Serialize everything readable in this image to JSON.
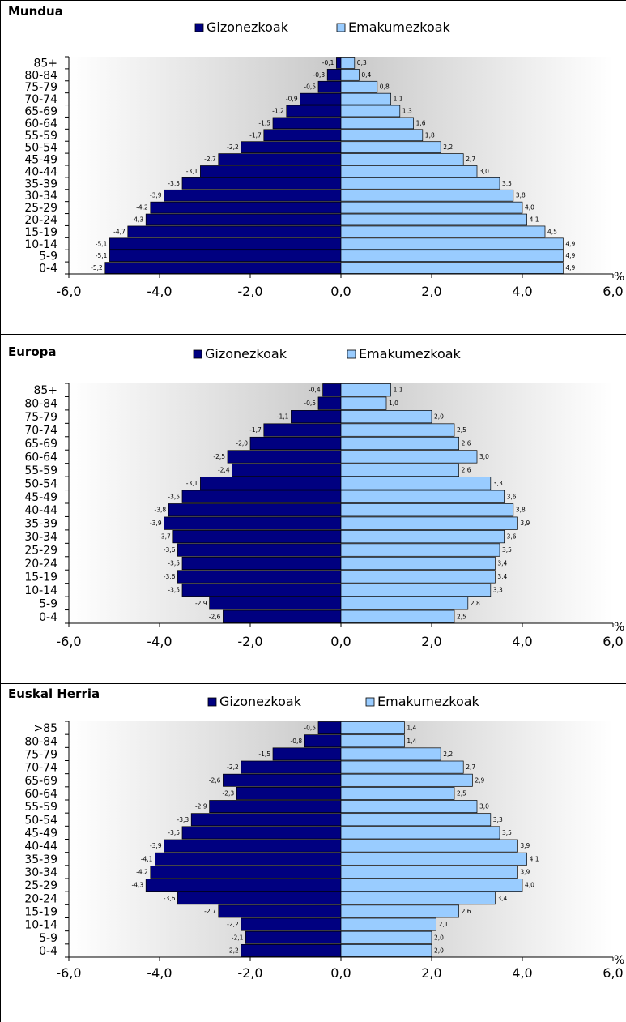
{
  "chart_data": [
    {
      "type": "bar",
      "title": "Mundua",
      "categories": [
        "85+",
        "80-84",
        "75-79",
        "70-74",
        "65-69",
        "60-64",
        "55-59",
        "50-54",
        "45-49",
        "40-44",
        "35-39",
        "30-34",
        "25-29",
        "20-24",
        "15-19",
        "10-14",
        "5-9",
        "0-4"
      ],
      "series": [
        {
          "name": "Gizonezkoak",
          "color": "#000080",
          "values": [
            -0.1,
            -0.3,
            -0.5,
            -0.9,
            -1.2,
            -1.5,
            -1.7,
            -2.2,
            -2.7,
            -3.1,
            -3.5,
            -3.9,
            -4.2,
            -4.3,
            -4.7,
            -5.1,
            -5.1,
            -5.2
          ],
          "labels": [
            "-0,1",
            "-0,3",
            "-0,5",
            "-0,9",
            "-1,2",
            "-1,5",
            "-1,7",
            "-2,2",
            "-2,7",
            "-3,1",
            "-3,5",
            "-3,9",
            "-4,2",
            "-4,3",
            "-4,7",
            "-5,1",
            "-5,1",
            "-5,2"
          ]
        },
        {
          "name": "Emakumezkoak",
          "color": "#99ccff",
          "values": [
            0.3,
            0.4,
            0.8,
            1.1,
            1.3,
            1.6,
            1.8,
            2.2,
            2.7,
            3.0,
            3.5,
            3.8,
            4.0,
            4.1,
            4.5,
            4.9,
            4.9,
            4.9
          ],
          "labels": [
            "0,3",
            "0,4",
            "0,8",
            "1,1",
            "1,3",
            "1,6",
            "1,8",
            "2,2",
            "2,7",
            "3,0",
            "3,5",
            "3,8",
            "4,0",
            "4,1",
            "4,5",
            "4,9",
            "4,9",
            "4,9"
          ]
        }
      ],
      "xlim": [
        -6,
        6
      ],
      "xticks": [
        "-6,0",
        "-4,0",
        "-2,0",
        "0,0",
        "2,0",
        "4,0",
        "6,0"
      ],
      "xunit": "%",
      "legend": "top-center"
    },
    {
      "type": "bar",
      "title": "Europa",
      "categories": [
        "85+",
        "80-84",
        "75-79",
        "70-74",
        "65-69",
        "60-64",
        "55-59",
        "50-54",
        "45-49",
        "40-44",
        "35-39",
        "30-34",
        "25-29",
        "20-24",
        "15-19",
        "10-14",
        "5-9",
        "0-4"
      ],
      "series": [
        {
          "name": "Gizonezkoak",
          "color": "#000080",
          "values": [
            -0.4,
            -0.5,
            -1.1,
            -1.7,
            -2.0,
            -2.5,
            -2.4,
            -3.1,
            -3.5,
            -3.8,
            -3.9,
            -3.7,
            -3.6,
            -3.5,
            -3.6,
            -3.5,
            -2.9,
            -2.6
          ],
          "labels": [
            "-0,4",
            "-0,5",
            "-1,1",
            "-1,7",
            "-2,0",
            "-2,5",
            "-2,4",
            "-3,1",
            "-3,5",
            "-3,8",
            "-3,9",
            "-3,7",
            "-3,6",
            "-3,5",
            "-3,6",
            "-3,5",
            "-2,9",
            "-2,6"
          ]
        },
        {
          "name": "Emakumezkoak",
          "color": "#99ccff",
          "values": [
            1.1,
            1.0,
            2.0,
            2.5,
            2.6,
            3.0,
            2.6,
            3.3,
            3.6,
            3.8,
            3.9,
            3.6,
            3.5,
            3.4,
            3.4,
            3.3,
            2.8,
            2.5
          ],
          "labels": [
            "1,1",
            "1,0",
            "2,0",
            "2,5",
            "2,6",
            "3,0",
            "2,6",
            "3,3",
            "3,6",
            "3,8",
            "3,9",
            "3,6",
            "3,5",
            "3,4",
            "3,4",
            "3,3",
            "2,8",
            "2,5"
          ]
        }
      ],
      "xlim": [
        -6,
        6
      ],
      "xticks": [
        "-6,0",
        "-4,0",
        "-2,0",
        "0,0",
        "2,0",
        "4,0",
        "6,0"
      ],
      "xunit": "%",
      "legend": "top-center"
    },
    {
      "type": "bar",
      "title": "Euskal Herria",
      "categories": [
        ">85",
        "80-84",
        "75-79",
        "70-74",
        "65-69",
        "60-64",
        "55-59",
        "50-54",
        "45-49",
        "40-44",
        "35-39",
        "30-34",
        "25-29",
        "20-24",
        "15-19",
        "10-14",
        "5-9",
        "0-4"
      ],
      "series": [
        {
          "name": "Gizonezkoak",
          "color": "#000080",
          "values": [
            -0.5,
            -0.8,
            -1.5,
            -2.2,
            -2.6,
            -2.3,
            -2.9,
            -3.3,
            -3.5,
            -3.9,
            -4.1,
            -4.2,
            -4.3,
            -3.6,
            -2.7,
            -2.2,
            -2.1,
            -2.2
          ],
          "labels": [
            "-0,5",
            "-0,8",
            "-1,5",
            "-2,2",
            "-2,6",
            "-2,3",
            "-2,9",
            "-3,3",
            "-3,5",
            "-3,9",
            "-4,1",
            "-4,2",
            "-4,3",
            "-3,6",
            "-2,7",
            "-2,2",
            "-2,1",
            "-2,2"
          ]
        },
        {
          "name": "Emakumezkoak",
          "color": "#99ccff",
          "values": [
            1.4,
            1.4,
            2.2,
            2.7,
            2.9,
            2.5,
            3.0,
            3.3,
            3.5,
            3.9,
            4.1,
            3.9,
            4.0,
            3.4,
            2.6,
            2.1,
            2.0,
            2.0
          ],
          "labels": [
            "1,4",
            "1,4",
            "2,2",
            "2,7",
            "2,9",
            "2,5",
            "3,0",
            "3,3",
            "3,5",
            "3,9",
            "4,1",
            "3,9",
            "4,0",
            "3,4",
            "2,6",
            "2,1",
            "2,0",
            "2,0"
          ]
        }
      ],
      "xlim": [
        -6,
        6
      ],
      "xticks": [
        "-6,0",
        "-4,0",
        "-2,0",
        "0,0",
        "2,0",
        "4,0",
        "6,0"
      ],
      "xunit": "%",
      "legend": "top-center"
    }
  ]
}
